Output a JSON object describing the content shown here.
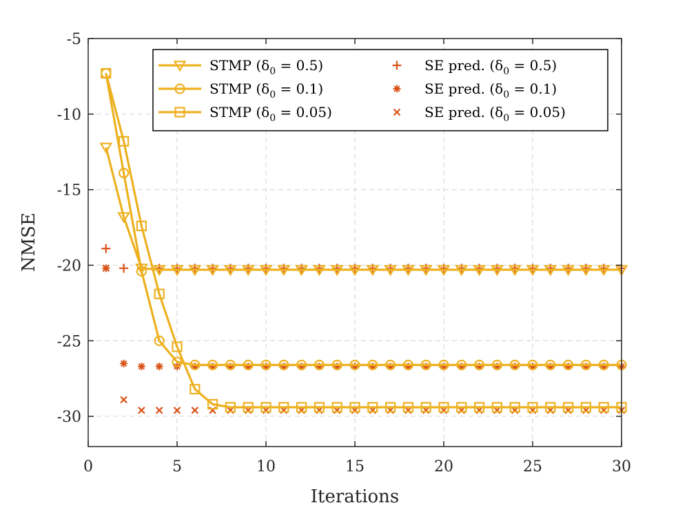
{
  "chart_data": {
    "type": "line",
    "xlabel": "Iterations",
    "ylabel": "NMSE",
    "xlim": [
      0,
      30
    ],
    "ylim": [
      -32,
      -5
    ],
    "xticks": [
      "0",
      "5",
      "10",
      "15",
      "20",
      "25",
      "30"
    ],
    "yticks": [
      "-5",
      "-10",
      "-15",
      "-20",
      "-25",
      "-30"
    ],
    "grid": true,
    "legend_position": "top-right",
    "colors": {
      "stmp": "#EDB120",
      "se": "#D95319"
    },
    "series": [
      {
        "name": "STMP (δ0 = 0.5)",
        "legend_label": "STMP (δ",
        "legend_sub": "0",
        "legend_value": " = 0.5)",
        "kind": "line",
        "marker": "triangle-down",
        "x": [
          1,
          2,
          3,
          4,
          5,
          6,
          7,
          8,
          9,
          10,
          11,
          12,
          13,
          14,
          15,
          16,
          17,
          18,
          19,
          20,
          21,
          22,
          23,
          24,
          25,
          26,
          27,
          28,
          29,
          30
        ],
        "values": [
          -12.2,
          -16.8,
          -20.2,
          -20.3,
          -20.3,
          -20.3,
          -20.3,
          -20.3,
          -20.3,
          -20.3,
          -20.3,
          -20.3,
          -20.3,
          -20.3,
          -20.3,
          -20.3,
          -20.3,
          -20.3,
          -20.3,
          -20.3,
          -20.3,
          -20.3,
          -20.3,
          -20.3,
          -20.3,
          -20.3,
          -20.3,
          -20.3,
          -20.3,
          -20.3
        ]
      },
      {
        "name": "STMP (δ0 = 0.1)",
        "legend_label": "STMP (δ",
        "legend_sub": "0",
        "legend_value": " = 0.1)",
        "kind": "line",
        "marker": "circle",
        "x": [
          1,
          2,
          3,
          4,
          5,
          6,
          7,
          8,
          9,
          10,
          11,
          12,
          13,
          14,
          15,
          16,
          17,
          18,
          19,
          20,
          21,
          22,
          23,
          24,
          25,
          26,
          27,
          28,
          29,
          30
        ],
        "values": [
          -7.3,
          -13.9,
          -20.4,
          -25.0,
          -26.4,
          -26.6,
          -26.6,
          -26.6,
          -26.6,
          -26.6,
          -26.6,
          -26.6,
          -26.6,
          -26.6,
          -26.6,
          -26.6,
          -26.6,
          -26.6,
          -26.6,
          -26.6,
          -26.6,
          -26.6,
          -26.6,
          -26.6,
          -26.6,
          -26.6,
          -26.6,
          -26.6,
          -26.6,
          -26.6
        ]
      },
      {
        "name": "STMP (δ0 = 0.05)",
        "legend_label": "STMP (δ",
        "legend_sub": "0",
        "legend_value": " = 0.05)",
        "kind": "line",
        "marker": "square",
        "x": [
          1,
          2,
          3,
          4,
          5,
          6,
          7,
          8,
          9,
          10,
          11,
          12,
          13,
          14,
          15,
          16,
          17,
          18,
          19,
          20,
          21,
          22,
          23,
          24,
          25,
          26,
          27,
          28,
          29,
          30
        ],
        "values": [
          -7.3,
          -11.8,
          -17.4,
          -21.9,
          -25.4,
          -28.2,
          -29.2,
          -29.4,
          -29.4,
          -29.4,
          -29.4,
          -29.4,
          -29.4,
          -29.4,
          -29.4,
          -29.4,
          -29.4,
          -29.4,
          -29.4,
          -29.4,
          -29.4,
          -29.4,
          -29.4,
          -29.4,
          -29.4,
          -29.4,
          -29.4,
          -29.4,
          -29.4,
          -29.4
        ]
      },
      {
        "name": "SE pred. (δ0 = 0.5)",
        "legend_label": "SE pred. (δ",
        "legend_sub": "0",
        "legend_value": " = 0.5)",
        "kind": "markers",
        "marker": "plus",
        "x": [
          1,
          2,
          3,
          4,
          5,
          6,
          7,
          8,
          9,
          10,
          11,
          12,
          13,
          14,
          15,
          16,
          17,
          18,
          19,
          20,
          21,
          22,
          23,
          24,
          25,
          26,
          27,
          28,
          29,
          30
        ],
        "values": [
          -18.9,
          -20.2,
          -20.2,
          -20.2,
          -20.2,
          -20.2,
          -20.2,
          -20.2,
          -20.2,
          -20.2,
          -20.2,
          -20.2,
          -20.2,
          -20.2,
          -20.2,
          -20.2,
          -20.2,
          -20.2,
          -20.2,
          -20.2,
          -20.2,
          -20.2,
          -20.2,
          -20.2,
          -20.2,
          -20.2,
          -20.2,
          -20.2,
          -20.2,
          -20.2
        ]
      },
      {
        "name": "SE pred. (δ0 = 0.1)",
        "legend_label": "SE pred. (δ",
        "legend_sub": "0",
        "legend_value": " = 0.1)",
        "kind": "markers",
        "marker": "asterisk",
        "x": [
          1,
          2,
          3,
          4,
          5,
          6,
          7,
          8,
          9,
          10,
          11,
          12,
          13,
          14,
          15,
          16,
          17,
          18,
          19,
          20,
          21,
          22,
          23,
          24,
          25,
          26,
          27,
          28,
          29,
          30
        ],
        "values": [
          -20.2,
          -26.5,
          -26.7,
          -26.7,
          -26.7,
          -26.7,
          -26.7,
          -26.7,
          -26.7,
          -26.7,
          -26.7,
          -26.7,
          -26.7,
          -26.7,
          -26.7,
          -26.7,
          -26.7,
          -26.7,
          -26.7,
          -26.7,
          -26.7,
          -26.7,
          -26.7,
          -26.7,
          -26.7,
          -26.7,
          -26.7,
          -26.7,
          -26.7,
          -26.7
        ]
      },
      {
        "name": "SE pred. (δ0 = 0.05)",
        "legend_label": "SE pred. (δ",
        "legend_sub": "0",
        "legend_value": " = 0.05)",
        "kind": "markers",
        "marker": "cross",
        "x": [
          1,
          2,
          3,
          4,
          5,
          6,
          7,
          8,
          9,
          10,
          11,
          12,
          13,
          14,
          15,
          16,
          17,
          18,
          19,
          20,
          21,
          22,
          23,
          24,
          25,
          26,
          27,
          28,
          29,
          30
        ],
        "values": [
          -20.2,
          -28.9,
          -29.6,
          -29.6,
          -29.6,
          -29.6,
          -29.6,
          -29.6,
          -29.6,
          -29.6,
          -29.6,
          -29.6,
          -29.6,
          -29.6,
          -29.6,
          -29.6,
          -29.6,
          -29.6,
          -29.6,
          -29.6,
          -29.6,
          -29.6,
          -29.6,
          -29.6,
          -29.6,
          -29.6,
          -29.6,
          -29.6,
          -29.6,
          -29.6
        ]
      }
    ]
  }
}
